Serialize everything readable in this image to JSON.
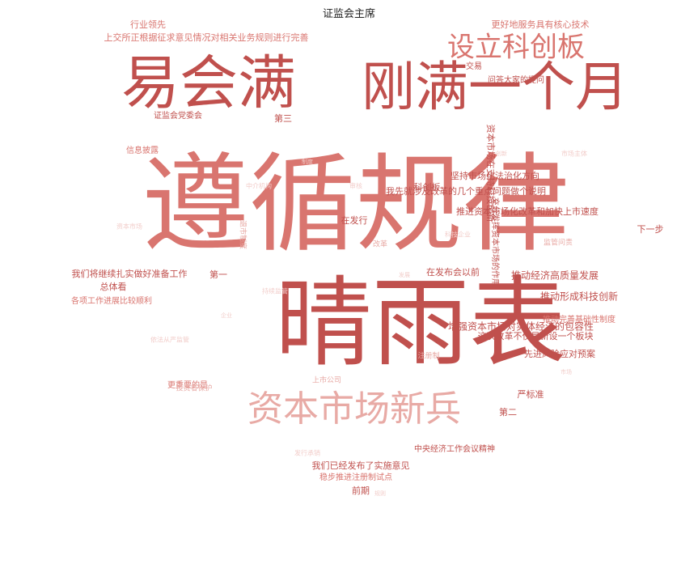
{
  "chart_data": {
    "type": "wordcloud",
    "title": "证监会主席",
    "shape": "heart",
    "palette": [
      "#c0504d",
      "#d9756f",
      "#e8aaa5",
      "#f2cdca"
    ],
    "words": [
      {
        "text": "遵循规律",
        "weight": 100,
        "color": "#d9756f"
      },
      {
        "text": "晴雨表",
        "weight": 88,
        "color": "#c0504d"
      },
      {
        "text": "易会满",
        "weight": 70,
        "color": "#c0504d"
      },
      {
        "text": "刚满一个月",
        "weight": 62,
        "color": "#c0504d"
      },
      {
        "text": "资本市场新兵",
        "weight": 40,
        "color": "#e8aaa5"
      },
      {
        "text": "设立科创板",
        "weight": 32,
        "color": "#d9756f"
      },
      {
        "text": "推动经济高质量发展",
        "weight": 10,
        "color": "#c0504d"
      },
      {
        "text": "推动形成科技创新",
        "weight": 10,
        "color": "#c0504d"
      },
      {
        "text": "资本市场在支持科技创新",
        "weight": 9,
        "color": "#c0504d"
      },
      {
        "text": "增强资本市场对实体经济的包容性",
        "weight": 9,
        "color": "#c0504d"
      },
      {
        "text": "我们将继续扎实做好准备工作",
        "weight": 9,
        "color": "#c0504d"
      },
      {
        "text": "推进资本市场化改革和加快上市速度",
        "weight": 9,
        "color": "#c0504d"
      },
      {
        "text": "上交所正根据征求意见情况对相关业务规则进行完善",
        "weight": 8,
        "color": "#d9756f"
      },
      {
        "text": "更好地服务具有核心技术",
        "weight": 8,
        "color": "#d9756f"
      },
      {
        "text": "行业领先",
        "weight": 8,
        "color": "#d9756f"
      },
      {
        "text": "我先就涉及改革的几个重点问题做个说明",
        "weight": 8,
        "color": "#c0504d"
      },
      {
        "text": "坚持市场化法治化方向",
        "weight": 8,
        "color": "#c0504d"
      },
      {
        "text": "这次改革不仅是新设一个板块",
        "weight": 8,
        "color": "#c0504d"
      },
      {
        "text": "先进风险应对预案",
        "weight": 8,
        "color": "#c0504d"
      },
      {
        "text": "在发布会以前",
        "weight": 8,
        "color": "#c0504d"
      },
      {
        "text": "在发行",
        "weight": 8,
        "color": "#c0504d"
      },
      {
        "text": "下一步",
        "weight": 8,
        "color": "#c0504d"
      },
      {
        "text": "总体看",
        "weight": 7,
        "color": "#c0504d"
      },
      {
        "text": "前期",
        "weight": 7,
        "color": "#c0504d"
      },
      {
        "text": "严标准",
        "weight": 7,
        "color": "#c0504d"
      },
      {
        "text": "第二",
        "weight": 7,
        "color": "#c0504d"
      },
      {
        "text": "第三",
        "weight": 7,
        "color": "#c0504d"
      },
      {
        "text": "第一",
        "weight": 7,
        "color": "#c0504d"
      },
      {
        "text": "科创板",
        "weight": 7,
        "color": "#c0504d"
      },
      {
        "text": "我们已经发布了实施意见",
        "weight": 7,
        "color": "#c0504d"
      },
      {
        "text": "稳步推进注册制试点",
        "weight": 6,
        "color": "#d9756f"
      },
      {
        "text": "推动完善基础性制度",
        "weight": 6,
        "color": "#d9756f"
      },
      {
        "text": "问答大家的提问",
        "weight": 6,
        "color": "#c0504d"
      },
      {
        "text": "证监会党委会",
        "weight": 6,
        "color": "#c0504d"
      },
      {
        "text": "交易",
        "weight": 6,
        "color": "#c0504d"
      },
      {
        "text": "信息披露",
        "weight": 6,
        "color": "#d9756f"
      },
      {
        "text": "各项工作进展比较顺利",
        "weight": 6,
        "color": "#d9756f"
      },
      {
        "text": "更重要的是",
        "weight": 6,
        "color": "#d9756f"
      },
      {
        "text": "中央经济工作会议精神",
        "weight": 6,
        "color": "#c0504d"
      },
      {
        "text": "充分发挥资本市场的作用",
        "weight": 6,
        "color": "#c0504d"
      },
      {
        "text": "投资者保护",
        "weight": 5,
        "color": "#e8aaa5"
      },
      {
        "text": "上市公司",
        "weight": 5,
        "color": "#e8aaa5"
      },
      {
        "text": "退市制度",
        "weight": 5,
        "color": "#e8aaa5"
      },
      {
        "text": "监管问责",
        "weight": 5,
        "color": "#e8aaa5"
      },
      {
        "text": "改革",
        "weight": 5,
        "color": "#e8aaa5"
      },
      {
        "text": "注册制",
        "weight": 5,
        "color": "#e8aaa5"
      },
      {
        "text": "依法从严监管",
        "weight": 4,
        "color": "#f2cdca"
      },
      {
        "text": "发行承销",
        "weight": 4,
        "color": "#f2cdca"
      },
      {
        "text": "市场主体",
        "weight": 4,
        "color": "#f2cdca"
      },
      {
        "text": "持续监管",
        "weight": 4,
        "color": "#f2cdca"
      },
      {
        "text": "中介机构",
        "weight": 4,
        "color": "#f2cdca"
      },
      {
        "text": "科技企业",
        "weight": 4,
        "color": "#f2cdca"
      },
      {
        "text": "审核",
        "weight": 4,
        "color": "#f2cdca"
      },
      {
        "text": "资本市场",
        "weight": 4,
        "color": "#f2cdca"
      },
      {
        "text": "规则",
        "weight": 3,
        "color": "#f2cdca"
      },
      {
        "text": "市场",
        "weight": 3,
        "color": "#f2cdca"
      },
      {
        "text": "企业",
        "weight": 3,
        "color": "#f2cdca"
      },
      {
        "text": "创新",
        "weight": 3,
        "color": "#f2cdca"
      },
      {
        "text": "制度",
        "weight": 3,
        "color": "#f2cdca"
      },
      {
        "text": "发展",
        "weight": 3,
        "color": "#f2cdca"
      }
    ]
  }
}
